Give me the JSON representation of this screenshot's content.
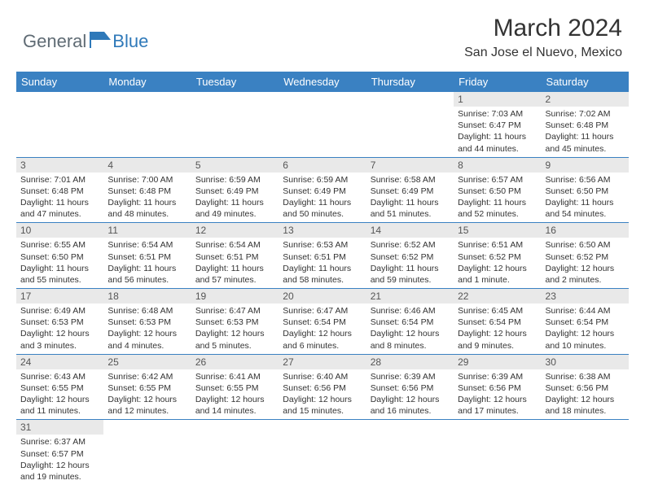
{
  "brand": {
    "text1": "General",
    "text2": "Blue"
  },
  "title": "March 2024",
  "location": "San Jose el Nuevo, Mexico",
  "colors": {
    "header_bg": "#3a81c2",
    "header_text": "#ffffff",
    "daynum_bg": "#e9e9e9",
    "border": "#3a81c2",
    "brand_gray": "#5f6b74",
    "brand_blue": "#2f79b9"
  },
  "dayNames": [
    "Sunday",
    "Monday",
    "Tuesday",
    "Wednesday",
    "Thursday",
    "Friday",
    "Saturday"
  ],
  "weeks": [
    [
      {
        "n": "",
        "sr": "",
        "ss": "",
        "dl": ""
      },
      {
        "n": "",
        "sr": "",
        "ss": "",
        "dl": ""
      },
      {
        "n": "",
        "sr": "",
        "ss": "",
        "dl": ""
      },
      {
        "n": "",
        "sr": "",
        "ss": "",
        "dl": ""
      },
      {
        "n": "",
        "sr": "",
        "ss": "",
        "dl": ""
      },
      {
        "n": "1",
        "sr": "Sunrise: 7:03 AM",
        "ss": "Sunset: 6:47 PM",
        "dl": "Daylight: 11 hours and 44 minutes."
      },
      {
        "n": "2",
        "sr": "Sunrise: 7:02 AM",
        "ss": "Sunset: 6:48 PM",
        "dl": "Daylight: 11 hours and 45 minutes."
      }
    ],
    [
      {
        "n": "3",
        "sr": "Sunrise: 7:01 AM",
        "ss": "Sunset: 6:48 PM",
        "dl": "Daylight: 11 hours and 47 minutes."
      },
      {
        "n": "4",
        "sr": "Sunrise: 7:00 AM",
        "ss": "Sunset: 6:48 PM",
        "dl": "Daylight: 11 hours and 48 minutes."
      },
      {
        "n": "5",
        "sr": "Sunrise: 6:59 AM",
        "ss": "Sunset: 6:49 PM",
        "dl": "Daylight: 11 hours and 49 minutes."
      },
      {
        "n": "6",
        "sr": "Sunrise: 6:59 AM",
        "ss": "Sunset: 6:49 PM",
        "dl": "Daylight: 11 hours and 50 minutes."
      },
      {
        "n": "7",
        "sr": "Sunrise: 6:58 AM",
        "ss": "Sunset: 6:49 PM",
        "dl": "Daylight: 11 hours and 51 minutes."
      },
      {
        "n": "8",
        "sr": "Sunrise: 6:57 AM",
        "ss": "Sunset: 6:50 PM",
        "dl": "Daylight: 11 hours and 52 minutes."
      },
      {
        "n": "9",
        "sr": "Sunrise: 6:56 AM",
        "ss": "Sunset: 6:50 PM",
        "dl": "Daylight: 11 hours and 54 minutes."
      }
    ],
    [
      {
        "n": "10",
        "sr": "Sunrise: 6:55 AM",
        "ss": "Sunset: 6:50 PM",
        "dl": "Daylight: 11 hours and 55 minutes."
      },
      {
        "n": "11",
        "sr": "Sunrise: 6:54 AM",
        "ss": "Sunset: 6:51 PM",
        "dl": "Daylight: 11 hours and 56 minutes."
      },
      {
        "n": "12",
        "sr": "Sunrise: 6:54 AM",
        "ss": "Sunset: 6:51 PM",
        "dl": "Daylight: 11 hours and 57 minutes."
      },
      {
        "n": "13",
        "sr": "Sunrise: 6:53 AM",
        "ss": "Sunset: 6:51 PM",
        "dl": "Daylight: 11 hours and 58 minutes."
      },
      {
        "n": "14",
        "sr": "Sunrise: 6:52 AM",
        "ss": "Sunset: 6:52 PM",
        "dl": "Daylight: 11 hours and 59 minutes."
      },
      {
        "n": "15",
        "sr": "Sunrise: 6:51 AM",
        "ss": "Sunset: 6:52 PM",
        "dl": "Daylight: 12 hours and 1 minute."
      },
      {
        "n": "16",
        "sr": "Sunrise: 6:50 AM",
        "ss": "Sunset: 6:52 PM",
        "dl": "Daylight: 12 hours and 2 minutes."
      }
    ],
    [
      {
        "n": "17",
        "sr": "Sunrise: 6:49 AM",
        "ss": "Sunset: 6:53 PM",
        "dl": "Daylight: 12 hours and 3 minutes."
      },
      {
        "n": "18",
        "sr": "Sunrise: 6:48 AM",
        "ss": "Sunset: 6:53 PM",
        "dl": "Daylight: 12 hours and 4 minutes."
      },
      {
        "n": "19",
        "sr": "Sunrise: 6:47 AM",
        "ss": "Sunset: 6:53 PM",
        "dl": "Daylight: 12 hours and 5 minutes."
      },
      {
        "n": "20",
        "sr": "Sunrise: 6:47 AM",
        "ss": "Sunset: 6:54 PM",
        "dl": "Daylight: 12 hours and 6 minutes."
      },
      {
        "n": "21",
        "sr": "Sunrise: 6:46 AM",
        "ss": "Sunset: 6:54 PM",
        "dl": "Daylight: 12 hours and 8 minutes."
      },
      {
        "n": "22",
        "sr": "Sunrise: 6:45 AM",
        "ss": "Sunset: 6:54 PM",
        "dl": "Daylight: 12 hours and 9 minutes."
      },
      {
        "n": "23",
        "sr": "Sunrise: 6:44 AM",
        "ss": "Sunset: 6:54 PM",
        "dl": "Daylight: 12 hours and 10 minutes."
      }
    ],
    [
      {
        "n": "24",
        "sr": "Sunrise: 6:43 AM",
        "ss": "Sunset: 6:55 PM",
        "dl": "Daylight: 12 hours and 11 minutes."
      },
      {
        "n": "25",
        "sr": "Sunrise: 6:42 AM",
        "ss": "Sunset: 6:55 PM",
        "dl": "Daylight: 12 hours and 12 minutes."
      },
      {
        "n": "26",
        "sr": "Sunrise: 6:41 AM",
        "ss": "Sunset: 6:55 PM",
        "dl": "Daylight: 12 hours and 14 minutes."
      },
      {
        "n": "27",
        "sr": "Sunrise: 6:40 AM",
        "ss": "Sunset: 6:56 PM",
        "dl": "Daylight: 12 hours and 15 minutes."
      },
      {
        "n": "28",
        "sr": "Sunrise: 6:39 AM",
        "ss": "Sunset: 6:56 PM",
        "dl": "Daylight: 12 hours and 16 minutes."
      },
      {
        "n": "29",
        "sr": "Sunrise: 6:39 AM",
        "ss": "Sunset: 6:56 PM",
        "dl": "Daylight: 12 hours and 17 minutes."
      },
      {
        "n": "30",
        "sr": "Sunrise: 6:38 AM",
        "ss": "Sunset: 6:56 PM",
        "dl": "Daylight: 12 hours and 18 minutes."
      }
    ],
    [
      {
        "n": "31",
        "sr": "Sunrise: 6:37 AM",
        "ss": "Sunset: 6:57 PM",
        "dl": "Daylight: 12 hours and 19 minutes."
      },
      {
        "n": "",
        "sr": "",
        "ss": "",
        "dl": ""
      },
      {
        "n": "",
        "sr": "",
        "ss": "",
        "dl": ""
      },
      {
        "n": "",
        "sr": "",
        "ss": "",
        "dl": ""
      },
      {
        "n": "",
        "sr": "",
        "ss": "",
        "dl": ""
      },
      {
        "n": "",
        "sr": "",
        "ss": "",
        "dl": ""
      },
      {
        "n": "",
        "sr": "",
        "ss": "",
        "dl": ""
      }
    ]
  ]
}
